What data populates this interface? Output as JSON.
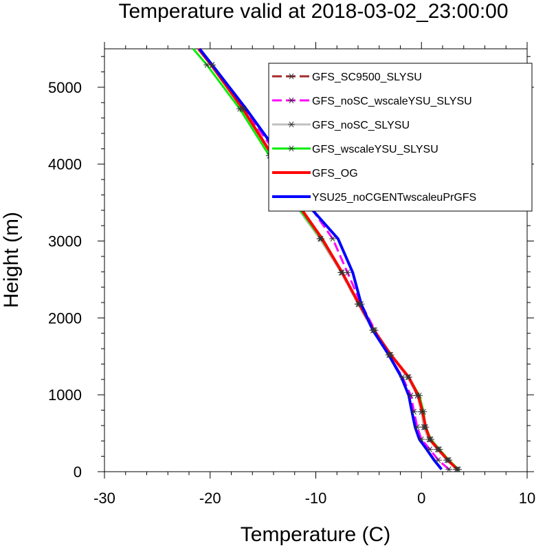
{
  "chart_data": {
    "type": "line",
    "title": "Temperature valid at 2018-03-02_23:00:00",
    "xlabel": "Temperature (C)",
    "ylabel": "Height (m)",
    "xlim": [
      -30,
      10
    ],
    "ylim": [
      0,
      5500
    ],
    "xticks": [
      -30,
      -20,
      -10,
      0,
      10
    ],
    "yticks": [
      0,
      1000,
      2000,
      3000,
      4000,
      5000
    ],
    "x_minor_step": 2,
    "y_minor_step": 200,
    "grid": false,
    "legend_position": "top-right",
    "series": [
      {
        "name": "GFS_SC9500_SLYSU",
        "color": "#a52a2a",
        "style": "dashed",
        "marker": "asterisk",
        "x": [
          3.4,
          2.5,
          1.6,
          0.8,
          0.3,
          0.0,
          -0.4,
          -1.3,
          -3.0,
          -4.6,
          -6.0,
          -7.6,
          -9.6,
          -12.3,
          -14.3,
          -17.0,
          -19.8,
          -21.0
        ],
        "y": [
          30,
          150,
          290,
          420,
          580,
          780,
          990,
          1230,
          1520,
          1840,
          2180,
          2590,
          3030,
          3540,
          4110,
          4720,
          5290,
          5500
        ]
      },
      {
        "name": "GFS_noSC_wscaleYSU_SLYSU",
        "color": "#ff00ff",
        "style": "dashed",
        "marker": "asterisk",
        "x": [
          2.6,
          1.6,
          0.8,
          0.0,
          -0.4,
          -0.7,
          -1.0,
          -1.8,
          -3.1,
          -4.4,
          -5.7,
          -7.0,
          -8.4,
          -11.0,
          -13.6,
          -16.8,
          -19.8,
          -21.0
        ],
        "y": [
          30,
          150,
          290,
          420,
          580,
          780,
          990,
          1230,
          1520,
          1840,
          2180,
          2590,
          3030,
          3540,
          4110,
          4720,
          5290,
          5500
        ]
      },
      {
        "name": "GFS_noSC_SLYSU",
        "color": "#c0c0c0",
        "style": "solid",
        "marker": "asterisk",
        "x": [
          3.3,
          2.4,
          1.5,
          0.7,
          0.2,
          0.0,
          -0.4,
          -1.3,
          -3.0,
          -4.6,
          -6.0,
          -7.6,
          -9.6,
          -12.3,
          -14.3,
          -17.0,
          -19.8,
          -21.0
        ],
        "y": [
          30,
          150,
          290,
          420,
          580,
          780,
          990,
          1230,
          1520,
          1840,
          2180,
          2590,
          3030,
          3540,
          4110,
          4720,
          5290,
          5500
        ]
      },
      {
        "name": "GFS_wscaleYSU_SLYSU",
        "color": "#00ee00",
        "style": "solid",
        "marker": "asterisk",
        "x": [
          3.5,
          2.6,
          1.7,
          0.9,
          0.4,
          0.2,
          -0.2,
          -1.2,
          -2.9,
          -4.5,
          -5.9,
          -7.5,
          -9.5,
          -12.2,
          -14.4,
          -17.2,
          -20.3,
          -21.6
        ],
        "y": [
          30,
          150,
          290,
          420,
          580,
          780,
          990,
          1230,
          1520,
          1840,
          2180,
          2590,
          3030,
          3540,
          4110,
          4720,
          5290,
          5500
        ]
      },
      {
        "name": "GFS_OG",
        "color": "#ff0000",
        "style": "solid",
        "marker": "none",
        "x": [
          3.4,
          2.5,
          1.6,
          0.8,
          0.4,
          0.1,
          -0.3,
          -1.2,
          -2.9,
          -4.5,
          -5.9,
          -7.5,
          -9.4,
          -12.0,
          -14.1,
          -16.9,
          -19.9,
          -21.1
        ],
        "y": [
          30,
          150,
          290,
          420,
          580,
          780,
          990,
          1230,
          1520,
          1840,
          2180,
          2590,
          3030,
          3540,
          4110,
          4720,
          5290,
          5500
        ]
      },
      {
        "name": "YSU25_noCGENTwscaleuPrGFS",
        "color": "#0000ff",
        "style": "solid",
        "marker": "none",
        "x": [
          1.9,
          1.2,
          0.5,
          -0.2,
          -0.6,
          -0.9,
          -1.2,
          -1.9,
          -3.1,
          -4.6,
          -5.7,
          -6.5,
          -7.9,
          -11.2,
          -13.4,
          -16.6,
          -19.8,
          -21.0
        ],
        "y": [
          30,
          150,
          290,
          420,
          580,
          780,
          990,
          1230,
          1520,
          1840,
          2180,
          2590,
          3030,
          3540,
          4110,
          4720,
          5290,
          5500
        ]
      }
    ]
  }
}
